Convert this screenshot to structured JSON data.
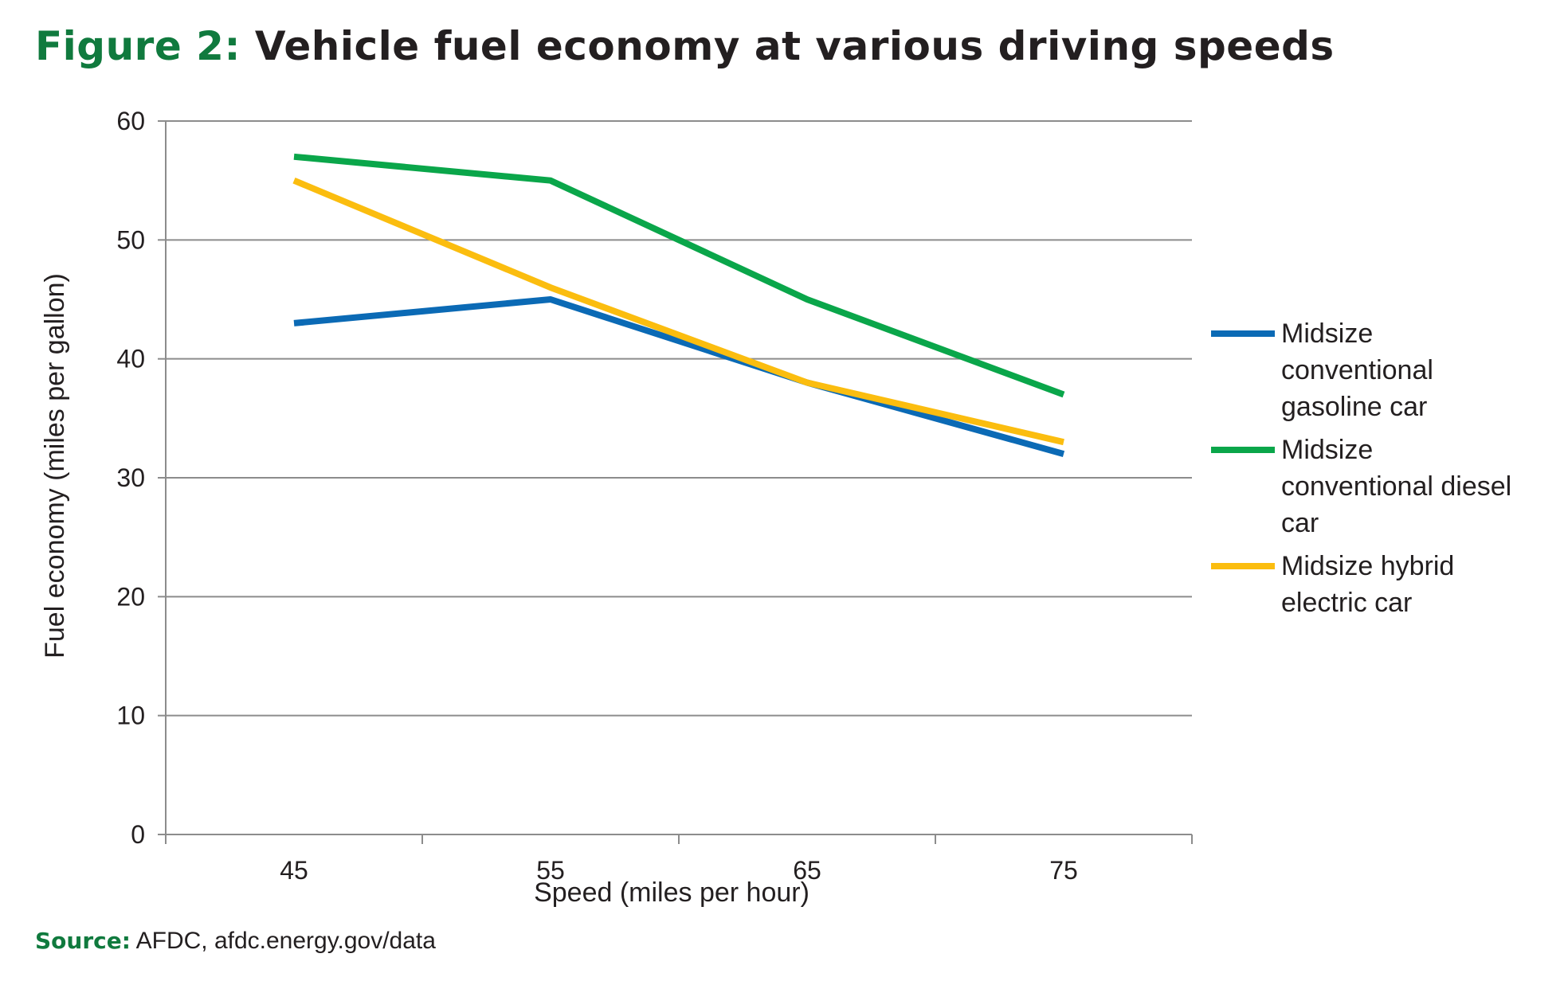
{
  "figure": {
    "label": "Figure 2:",
    "title": "Vehicle fuel economy at various driving speeds"
  },
  "source": {
    "label": "Source:",
    "text": "AFDC, afdc.energy.gov/data"
  },
  "chart_data": {
    "type": "line",
    "categories": [
      "45",
      "55",
      "65",
      "75"
    ],
    "xlabel": "Speed (miles per hour)",
    "ylabel": "Fuel economy (miles per gallon)",
    "ylim": [
      0,
      60
    ],
    "yticks": [
      0,
      10,
      20,
      30,
      40,
      50,
      60
    ],
    "grid": true,
    "legend_position": "right",
    "series": [
      {
        "name": "Midsize conventional gasoline car",
        "color": "#0b6ab5",
        "values": [
          43,
          45,
          38,
          32
        ],
        "legend_lines": [
          "Midsize",
          "conventional",
          "gasoline car"
        ]
      },
      {
        "name": "Midsize conventional diesel car",
        "color": "#0aa64a",
        "values": [
          57,
          55,
          45,
          37
        ],
        "legend_lines": [
          "Midsize",
          "conventional diesel",
          "car"
        ]
      },
      {
        "name": "Midsize hybrid electric car",
        "color": "#fbbd0f",
        "values": [
          55,
          46,
          38,
          33
        ],
        "legend_lines": [
          "Midsize hybrid",
          "electric car"
        ]
      }
    ]
  }
}
